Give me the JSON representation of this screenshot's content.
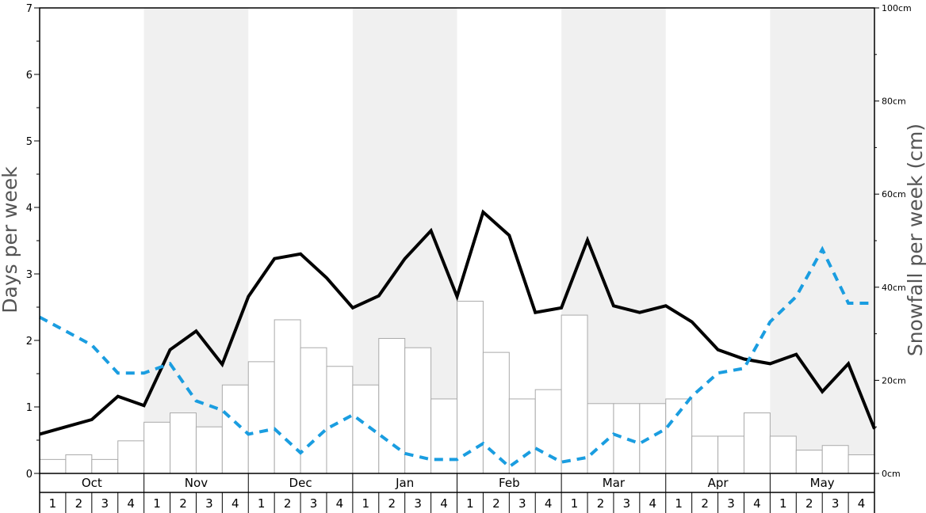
{
  "chart_data": {
    "type": "bar+line",
    "y_left_label": "Days per week",
    "y_right_label": "Snowfall per week (cm)",
    "y_left_range": [
      0,
      7
    ],
    "y_left_ticks": [
      "0",
      "1",
      "2",
      "3",
      "4",
      "5",
      "6",
      "7"
    ],
    "y_right_range": [
      0,
      100
    ],
    "y_right_ticks": [
      "0cm",
      "20cm",
      "40cm",
      "60cm",
      "80cm",
      "100cm"
    ],
    "months": [
      "Oct",
      "Nov",
      "Dec",
      "Jan",
      "Feb",
      "Mar",
      "Apr",
      "May"
    ],
    "week_labels": [
      "1",
      "2",
      "3",
      "4"
    ],
    "shaded_months": [
      "Nov",
      "Jan",
      "Mar",
      "May"
    ],
    "series": [
      {
        "kind": "bar",
        "axis": "right",
        "values_cm": [
          3,
          4,
          3,
          7,
          11,
          13,
          10,
          19,
          24,
          33,
          27,
          23,
          19,
          29,
          27,
          16,
          37,
          26,
          16,
          18,
          34,
          15,
          15,
          15,
          16,
          8,
          8,
          13,
          8,
          5,
          6,
          4
        ]
      },
      {
        "kind": "line",
        "style": "solid",
        "color": "#000000",
        "axis": "left",
        "values": [
          0.59,
          0.7,
          0.81,
          1.16,
          1.02,
          1.86,
          2.14,
          1.64,
          2.66,
          3.23,
          3.3,
          2.94,
          2.49,
          2.67,
          3.23,
          3.65,
          2.66,
          3.93,
          3.58,
          2.42,
          2.49,
          3.51,
          2.52,
          2.42,
          2.52,
          2.28,
          1.86,
          1.72,
          1.65,
          1.79,
          1.23,
          1.65,
          0.67
        ]
      },
      {
        "kind": "line",
        "style": "dashed",
        "color": "#1a9de0",
        "axis": "left",
        "values": [
          2.35,
          2.14,
          1.93,
          1.51,
          1.51,
          1.65,
          1.09,
          0.95,
          0.59,
          0.67,
          0.31,
          0.67,
          0.88,
          0.59,
          0.3,
          0.21,
          0.21,
          0.45,
          0.1,
          0.38,
          0.17,
          0.24,
          0.59,
          0.45,
          0.67,
          1.16,
          1.51,
          1.58,
          2.28,
          2.66,
          3.37,
          2.56,
          2.56
        ]
      }
    ],
    "grid": false
  },
  "colors": {
    "shade": "#f0f0f0",
    "bar_fill": "#ffffff",
    "bar_stroke": "#aaaaaa",
    "solid_line": "#000000",
    "dashed_line": "#1a9de0",
    "axis_title": "#555555"
  }
}
